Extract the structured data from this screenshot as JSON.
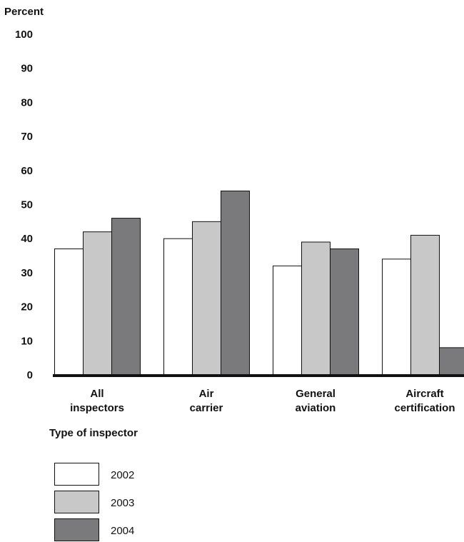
{
  "chart_data": {
    "type": "bar",
    "ylabel": "Percent",
    "xlabel": "Type of inspector",
    "ylim": [
      0,
      100
    ],
    "yticks": [
      0,
      10,
      20,
      30,
      40,
      50,
      60,
      70,
      80,
      90,
      100
    ],
    "grid": false,
    "legend_position": "bottom-left",
    "categories": [
      [
        "All",
        "inspectors"
      ],
      [
        "Air",
        "carrier"
      ],
      [
        "General",
        "aviation"
      ],
      [
        "Aircraft",
        "certification"
      ]
    ],
    "series": [
      {
        "name": "2002",
        "color": "#ffffff",
        "values": [
          37,
          40,
          32,
          34
        ]
      },
      {
        "name": "2003",
        "color": "#c8c8c8",
        "values": [
          42,
          45,
          39,
          41
        ]
      },
      {
        "name": "2004",
        "color": "#7a7a7d",
        "values": [
          46,
          54,
          37,
          8
        ]
      }
    ]
  }
}
